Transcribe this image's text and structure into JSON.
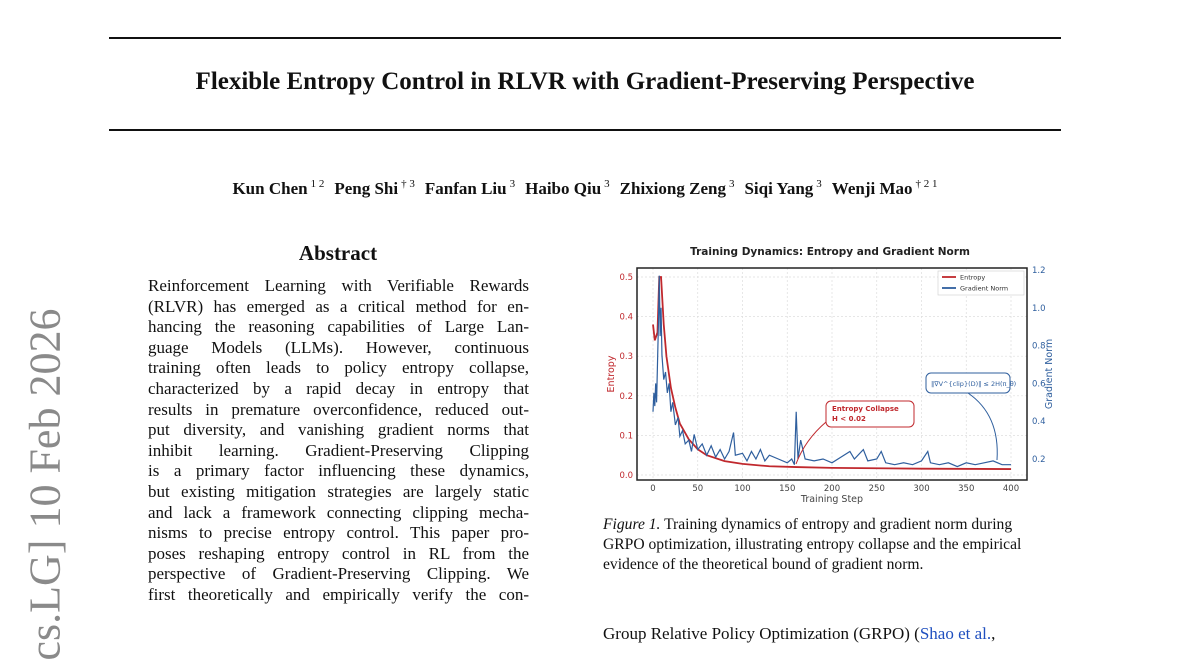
{
  "title": "Flexible Entropy Control in RLVR with Gradient-Preserving Perspective",
  "authors": [
    {
      "name": "Kun Chen",
      "aff": "1 2"
    },
    {
      "name": "Peng Shi",
      "aff": "† 3"
    },
    {
      "name": "Fanfan Liu",
      "aff": "3"
    },
    {
      "name": "Haibo Qiu",
      "aff": "3"
    },
    {
      "name": "Zhixiong Zeng",
      "aff": "3"
    },
    {
      "name": "Siqi Yang",
      "aff": "3"
    },
    {
      "name": "Wenji Mao",
      "aff": "† 2 1"
    }
  ],
  "arxiv_stamp": "cs.LG]  10 Feb 2026",
  "abstract": {
    "heading": "Abstract",
    "lines": [
      "Reinforcement Learning with Verifiable Rewards",
      "(RLVR) has emerged as a critical method for en-",
      "hancing the reasoning capabilities of Large Lan-",
      "guage Models (LLMs).  However, continuous",
      "training often leads to policy entropy collapse,",
      "characterized by a rapid decay in entropy that",
      "results in premature overconfidence, reduced out-",
      "put diversity, and vanishing gradient norms that",
      "inhibit learning.  Gradient-Preserving Clipping",
      "is a primary factor influencing these dynamics,",
      "but existing mitigation strategies are largely static",
      "and lack a framework connecting clipping mecha-",
      "nisms to precise entropy control. This paper pro-",
      "poses reshaping entropy control in RL from the",
      "perspective of Gradient-Preserving Clipping. We",
      "first theoretically and empirically verify the con-"
    ]
  },
  "caption": {
    "label": "Figure 1.",
    "lines": [
      " Training dynamics of entropy and gradient norm during",
      "GRPO optimization, illustrating entropy collapse and the empirical",
      "evidence of the theoretical bound of gradient norm."
    ]
  },
  "body_text": {
    "prefix": "Group Relative Policy Optimization (GRPO) (",
    "link": "Shao et al.",
    "suffix": ","
  },
  "chart_data": {
    "type": "line",
    "title": "Training Dynamics: Entropy and Gradient Norm",
    "xlabel": "Training Step",
    "ylabel": "Entropy",
    "y2label": "Gradient Norm",
    "xlim": [
      -15,
      415
    ],
    "ylim": [
      -0.01,
      0.52
    ],
    "y2lim": [
      0.1,
      1.22
    ],
    "xticks": [
      "0",
      "50",
      "100",
      "150",
      "200",
      "250",
      "300",
      "350",
      "400"
    ],
    "yticks": [
      "0.0",
      "0.1",
      "0.2",
      "0.3",
      "0.4",
      "0.5"
    ],
    "y2ticks": [
      "0.2",
      "0.4",
      "0.6",
      "0.8",
      "1.0",
      "1.2"
    ],
    "grid": true,
    "legend_position": "top-right",
    "series": [
      {
        "name": "Entropy",
        "axis": "left",
        "color": "#c0282d",
        "x": [
          0,
          2,
          5,
          7,
          9,
          12,
          15,
          20,
          25,
          30,
          40,
          50,
          60,
          80,
          100,
          130,
          160,
          200,
          300,
          400
        ],
        "y": [
          0.38,
          0.34,
          0.36,
          0.5,
          0.5,
          0.38,
          0.3,
          0.22,
          0.17,
          0.13,
          0.09,
          0.065,
          0.05,
          0.035,
          0.028,
          0.022,
          0.02,
          0.018,
          0.016,
          0.015
        ]
      },
      {
        "name": "Gradient Norm",
        "axis": "right",
        "color": "#2f5f9e",
        "x": [
          0,
          1,
          2,
          3,
          4,
          5,
          6,
          7,
          8,
          9,
          10,
          12,
          14,
          16,
          18,
          20,
          22,
          25,
          28,
          30,
          33,
          36,
          40,
          43,
          46,
          50,
          55,
          60,
          65,
          70,
          75,
          80,
          85,
          90,
          92,
          100,
          105,
          110,
          115,
          120,
          125,
          130,
          140,
          150,
          155,
          158,
          160,
          162,
          165,
          170,
          180,
          190,
          200,
          210,
          220,
          225,
          235,
          240,
          250,
          255,
          260,
          270,
          280,
          290,
          300,
          307,
          310,
          320,
          330,
          340,
          350,
          360,
          370,
          380,
          390,
          400
        ],
        "y": [
          0.45,
          0.55,
          0.48,
          0.6,
          0.5,
          0.7,
          0.9,
          1.17,
          0.85,
          1.0,
          0.75,
          0.62,
          0.66,
          0.55,
          0.6,
          0.45,
          0.5,
          0.38,
          0.42,
          0.32,
          0.35,
          0.28,
          0.3,
          0.24,
          0.33,
          0.25,
          0.28,
          0.22,
          0.27,
          0.21,
          0.25,
          0.2,
          0.24,
          0.34,
          0.22,
          0.23,
          0.19,
          0.24,
          0.2,
          0.25,
          0.19,
          0.22,
          0.2,
          0.18,
          0.2,
          0.17,
          0.45,
          0.2,
          0.3,
          0.2,
          0.19,
          0.2,
          0.18,
          0.21,
          0.24,
          0.2,
          0.25,
          0.19,
          0.2,
          0.24,
          0.18,
          0.17,
          0.18,
          0.17,
          0.19,
          0.24,
          0.18,
          0.17,
          0.18,
          0.16,
          0.18,
          0.17,
          0.18,
          0.19,
          0.17,
          0.17
        ]
      }
    ],
    "annotations": [
      {
        "text": [
          "Entropy Collapse",
          "H < 0.02"
        ],
        "color": "#c0282d",
        "points_to_step": 160
      },
      {
        "text": [
          "‖∇V^{clip}(D)‖ ≤ 2H(π_θ)"
        ],
        "color": "#2f5f9e",
        "points_to_step": 385
      }
    ]
  }
}
